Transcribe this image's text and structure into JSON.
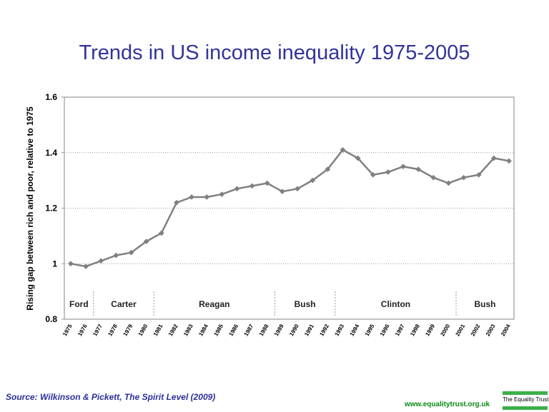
{
  "title": "Trends in US income inequality 1975-2005",
  "source": "Source: Wilkinson & Pickett, The Spirit Level (2009)",
  "website": "www.equalitytrust.org.uk",
  "logo_text": "The Equality Trust",
  "colors": {
    "title": "#33339a",
    "line": "#808080",
    "source": "#2b2f99",
    "website": "#0a8a14",
    "logo": "#3cb04a"
  },
  "chart_data": {
    "type": "line",
    "title": "Trends in US income inequality 1975-2005",
    "ylabel": "Rising gap between rich and poor, relative to 1975",
    "xlabel": "",
    "ylim": [
      0.8,
      1.6
    ],
    "yticks": [
      "0.8",
      "1",
      "1.2",
      "1.4",
      "1.6"
    ],
    "grid": "horizontal dotted",
    "x": [
      "1975",
      "1976",
      "1977",
      "1978",
      "1979",
      "1980",
      "1981",
      "1982",
      "1983",
      "1984",
      "1985",
      "1986",
      "1987",
      "1988",
      "1989",
      "1990",
      "1991",
      "1992",
      "1993",
      "1994",
      "1995",
      "1996",
      "1997",
      "1998",
      "1999",
      "2000",
      "2001",
      "2002",
      "2003",
      "2004"
    ],
    "series": [
      {
        "values": [
          1.0,
          0.99,
          1.01,
          1.03,
          1.04,
          1.08,
          1.11,
          1.22,
          1.24,
          1.24,
          1.25,
          1.27,
          1.28,
          1.29,
          1.26,
          1.27,
          1.3,
          1.34,
          1.41,
          1.38,
          1.32,
          1.33,
          1.35,
          1.34,
          1.31,
          1.29,
          1.31,
          1.32,
          1.38,
          1.37
        ]
      }
    ],
    "eras": [
      {
        "label": "Ford",
        "start": 0,
        "end": 1.5
      },
      {
        "label": "Carter",
        "start": 1.5,
        "end": 5.5
      },
      {
        "label": "Reagan",
        "start": 5.5,
        "end": 13.5
      },
      {
        "label": "Bush",
        "start": 13.5,
        "end": 17.5
      },
      {
        "label": "Clinton",
        "start": 17.5,
        "end": 25.5
      },
      {
        "label": "Bush",
        "start": 25.5,
        "end": 29.5
      }
    ]
  }
}
